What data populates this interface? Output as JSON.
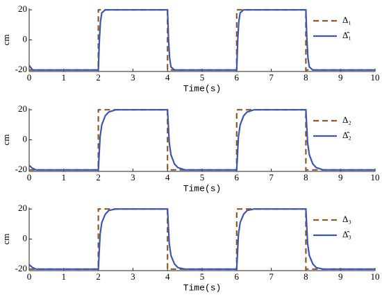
{
  "chart_data": [
    {
      "type": "line",
      "xlabel": "Time(s)",
      "ylabel": "cm",
      "xlim": [
        0,
        10
      ],
      "ylim": [
        -21,
        21
      ],
      "xticks": [
        0,
        1,
        2,
        3,
        4,
        5,
        6,
        7,
        8,
        9,
        10
      ],
      "yticks": [
        -20,
        0,
        20
      ],
      "legend": "upper right",
      "series": [
        {
          "name": "Δ₁",
          "color": "#8b5a2b",
          "style": "dashed",
          "x": [
            0,
            2,
            2,
            4,
            4,
            6,
            6,
            8,
            8,
            10
          ],
          "values": [
            -20,
            -20,
            20,
            20,
            -20,
            -20,
            20,
            20,
            -20,
            -20
          ]
        },
        {
          "name": "Δ̂₁",
          "color": "#3a55b4",
          "style": "solid",
          "x": [
            0,
            0.1,
            0.2,
            2,
            2.03,
            2.06,
            2.1,
            2.2,
            4,
            4.03,
            4.06,
            4.1,
            4.2,
            6,
            6.03,
            6.06,
            6.1,
            6.2,
            8,
            8.03,
            8.06,
            8.1,
            8.2,
            10
          ],
          "values": [
            -17,
            -20,
            -20,
            -20,
            0,
            12,
            18,
            20,
            20,
            0,
            -12,
            -18,
            -20,
            -20,
            0,
            12,
            18,
            20,
            20,
            0,
            -12,
            -18,
            -20,
            -20
          ]
        }
      ]
    },
    {
      "type": "line",
      "xlabel": "Time(s)",
      "ylabel": "cm",
      "xlim": [
        0,
        10
      ],
      "ylim": [
        -21,
        21
      ],
      "xticks": [
        0,
        1,
        2,
        3,
        4,
        5,
        6,
        7,
        8,
        9,
        10
      ],
      "yticks": [
        -20,
        0,
        20
      ],
      "legend": "upper right",
      "series": [
        {
          "name": "Δ₂",
          "color": "#8b5a2b",
          "style": "dashed",
          "x": [
            0,
            2,
            2,
            4,
            4,
            6,
            6,
            8,
            8,
            10
          ],
          "values": [
            -20,
            -20,
            20,
            20,
            -20,
            -20,
            20,
            20,
            -20,
            -20
          ]
        },
        {
          "name": "Δ̂₂",
          "color": "#3a55b4",
          "style": "solid",
          "x": [
            0,
            0.1,
            0.2,
            2,
            2.05,
            2.1,
            2.2,
            2.3,
            2.5,
            4,
            4.05,
            4.1,
            4.2,
            4.3,
            4.5,
            6,
            6.05,
            6.1,
            6.2,
            6.3,
            6.5,
            8,
            8.05,
            8.1,
            8.2,
            8.3,
            8.5,
            10
          ],
          "values": [
            -17,
            -19,
            -20,
            -20,
            2,
            10,
            16,
            18.5,
            20,
            20,
            -2,
            -10,
            -16,
            -18.5,
            -20,
            -20,
            2,
            10,
            16,
            18.5,
            20,
            20,
            -2,
            -10,
            -16,
            -18.5,
            -20,
            -20
          ]
        }
      ]
    },
    {
      "type": "line",
      "xlabel": "Time(s)",
      "ylabel": "cm",
      "xlim": [
        0,
        10
      ],
      "ylim": [
        -21,
        21
      ],
      "xticks": [
        0,
        1,
        2,
        3,
        4,
        5,
        6,
        7,
        8,
        9,
        10
      ],
      "yticks": [
        -20,
        0,
        20
      ],
      "legend": "upper right",
      "series": [
        {
          "name": "Δ₃",
          "color": "#8b5a2b",
          "style": "dashed",
          "x": [
            0,
            2,
            2,
            4,
            4,
            6,
            6,
            8,
            8,
            10
          ],
          "values": [
            -20,
            -20,
            20,
            20,
            -20,
            -20,
            20,
            20,
            -20,
            -20
          ]
        },
        {
          "name": "Δ̂₃",
          "color": "#3a55b4",
          "style": "solid",
          "x": [
            0,
            0.1,
            0.2,
            2,
            2.05,
            2.1,
            2.2,
            2.3,
            2.5,
            4,
            4.05,
            4.1,
            4.2,
            4.3,
            4.5,
            6,
            6.05,
            6.1,
            6.2,
            6.3,
            6.5,
            8,
            8.05,
            8.1,
            8.2,
            8.3,
            8.5,
            10
          ],
          "values": [
            -17,
            -19,
            -20,
            -20,
            3,
            11,
            16.5,
            19,
            20,
            20,
            -3,
            -11,
            -16.5,
            -19,
            -20,
            -20,
            3,
            11,
            16.5,
            19,
            20,
            20,
            -3,
            -11,
            -16.5,
            -19,
            -20,
            -20
          ]
        }
      ]
    }
  ]
}
